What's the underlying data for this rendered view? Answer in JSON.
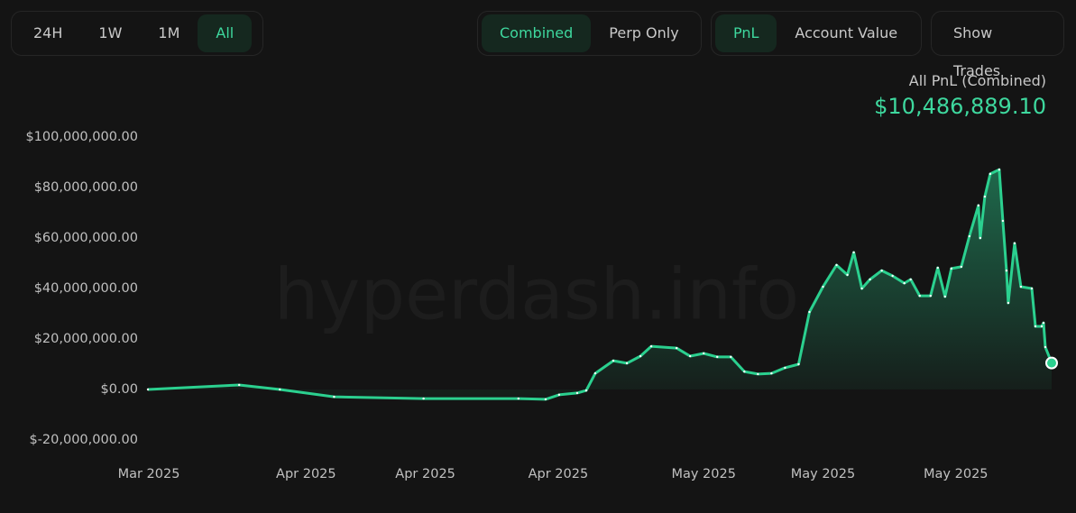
{
  "controls": {
    "ranges": [
      "24H",
      "1W",
      "1M",
      "All"
    ],
    "active_range": 3,
    "modes": [
      "Combined",
      "Perp Only"
    ],
    "active_mode": 0,
    "metrics": [
      "PnL",
      "Account Value"
    ],
    "active_metric": 0,
    "trades_button": "Show Trades"
  },
  "summary": {
    "label": "All PnL (Combined)",
    "value": "$10,486,889.10"
  },
  "watermark": "hyperdash.info",
  "chart_data": {
    "type": "line",
    "x": [
      0,
      10.1,
      14.6,
      20.6,
      30.5,
      41.0,
      44.0,
      45.5,
      47.5,
      48.5,
      49.5,
      51.5,
      53.0,
      54.5,
      55.7,
      58.5,
      60.0,
      61.5,
      63.0,
      64.5,
      66.0,
      67.5,
      69.0,
      70.5,
      72.0,
      73.2,
      74.7,
      76.2,
      77.4,
      78.1,
      79.0,
      79.9,
      81.2,
      82.4,
      83.7,
      84.4,
      85.4,
      86.6,
      87.4,
      88.2,
      88.9,
      90.0,
      90.9,
      91.9,
      92.1,
      92.6,
      93.2,
      94.2,
      94.6,
      95.0,
      95.2,
      95.9,
      96.6,
      97.8,
      98.2,
      98.9,
      99.1,
      99.3,
      100
    ],
    "series": [
      {
        "name": "PnL",
        "color": "#2bd08f",
        "values": [
          0,
          1800000,
          0,
          -2900000,
          -3600000,
          -3600000,
          -3900000,
          -2100000,
          -1400000,
          -400000,
          6400000,
          11400000,
          10400000,
          13200000,
          17100000,
          16400000,
          13200000,
          14300000,
          12900000,
          12900000,
          7100000,
          6100000,
          6400000,
          8600000,
          10000000,
          30700000,
          40700000,
          49300000,
          45400000,
          54300000,
          40000000,
          43600000,
          47100000,
          45000000,
          42100000,
          43600000,
          37100000,
          37100000,
          48200000,
          36800000,
          47900000,
          48600000,
          60700000,
          72900000,
          60000000,
          76400000,
          85400000,
          87100000,
          66800000,
          47100000,
          34300000,
          57900000,
          40700000,
          40000000,
          25000000,
          25000000,
          26400000,
          16800000,
          10486889.1
        ]
      }
    ],
    "xlim": [
      0,
      100
    ],
    "xticks": [
      {
        "value": 0.1,
        "label": "Mar 2025"
      },
      {
        "value": 17.5,
        "label": "Apr 2025"
      },
      {
        "value": 30.7,
        "label": "Apr 2025"
      },
      {
        "value": 45.4,
        "label": "Apr 2025"
      },
      {
        "value": 61.5,
        "label": "May 2025"
      },
      {
        "value": 74.7,
        "label": "May 2025"
      },
      {
        "value": 89.4,
        "label": "May 2025"
      }
    ],
    "ylim": [
      -20000000,
      100000000
    ],
    "yticks": [
      {
        "value": -20000000,
        "label": "$-20,000,000.00"
      },
      {
        "value": 0,
        "label": "$0.00"
      },
      {
        "value": 20000000,
        "label": "$20,000,000.00"
      },
      {
        "value": 40000000,
        "label": "$40,000,000.00"
      },
      {
        "value": 60000000,
        "label": "$60,000,000.00"
      },
      {
        "value": 80000000,
        "label": "$80,000,000.00"
      },
      {
        "value": 100000000,
        "label": "$100,000,000.00"
      }
    ]
  }
}
